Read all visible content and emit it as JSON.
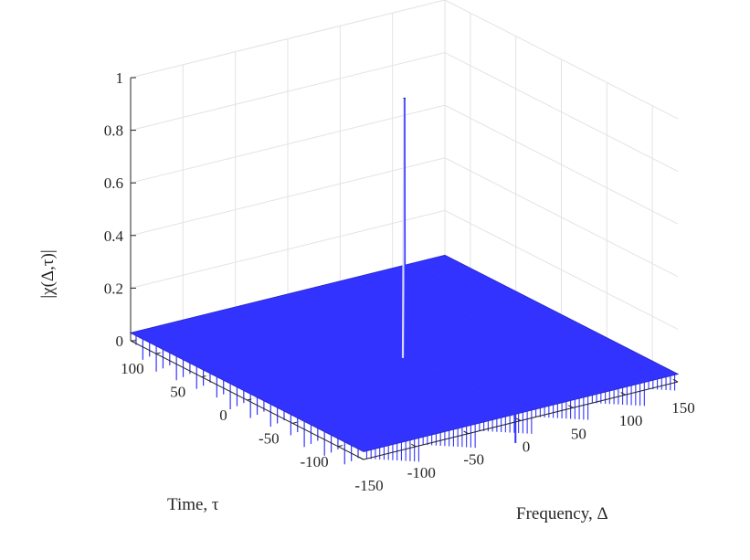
{
  "chart_data": {
    "type": "surface",
    "title": "",
    "xlabel": "Frequency, Δ",
    "ylabel": "Time, τ",
    "zlabel": "|χ(Δ,τ)|",
    "xlim": [
      -150,
      150
    ],
    "ylim": [
      -128,
      128
    ],
    "zlim": [
      0,
      1
    ],
    "x_ticks": [
      "-150",
      "-100",
      "-50",
      "0",
      "50",
      "100",
      "150"
    ],
    "y_ticks": [
      "-100",
      "-50",
      "0",
      "50",
      "100"
    ],
    "z_ticks": [
      "0",
      "0.2",
      "0.4",
      "0.6",
      "0.8",
      "1"
    ],
    "grid": true,
    "surface_color": "#3333ff",
    "peak": {
      "x": 0,
      "y": 0,
      "z": 1
    },
    "sidelobe_level": 0.03,
    "description_series": [
      {
        "name": "",
        "points": [
          {
            "x": 0,
            "y": 0,
            "z": 1
          }
        ]
      }
    ]
  }
}
